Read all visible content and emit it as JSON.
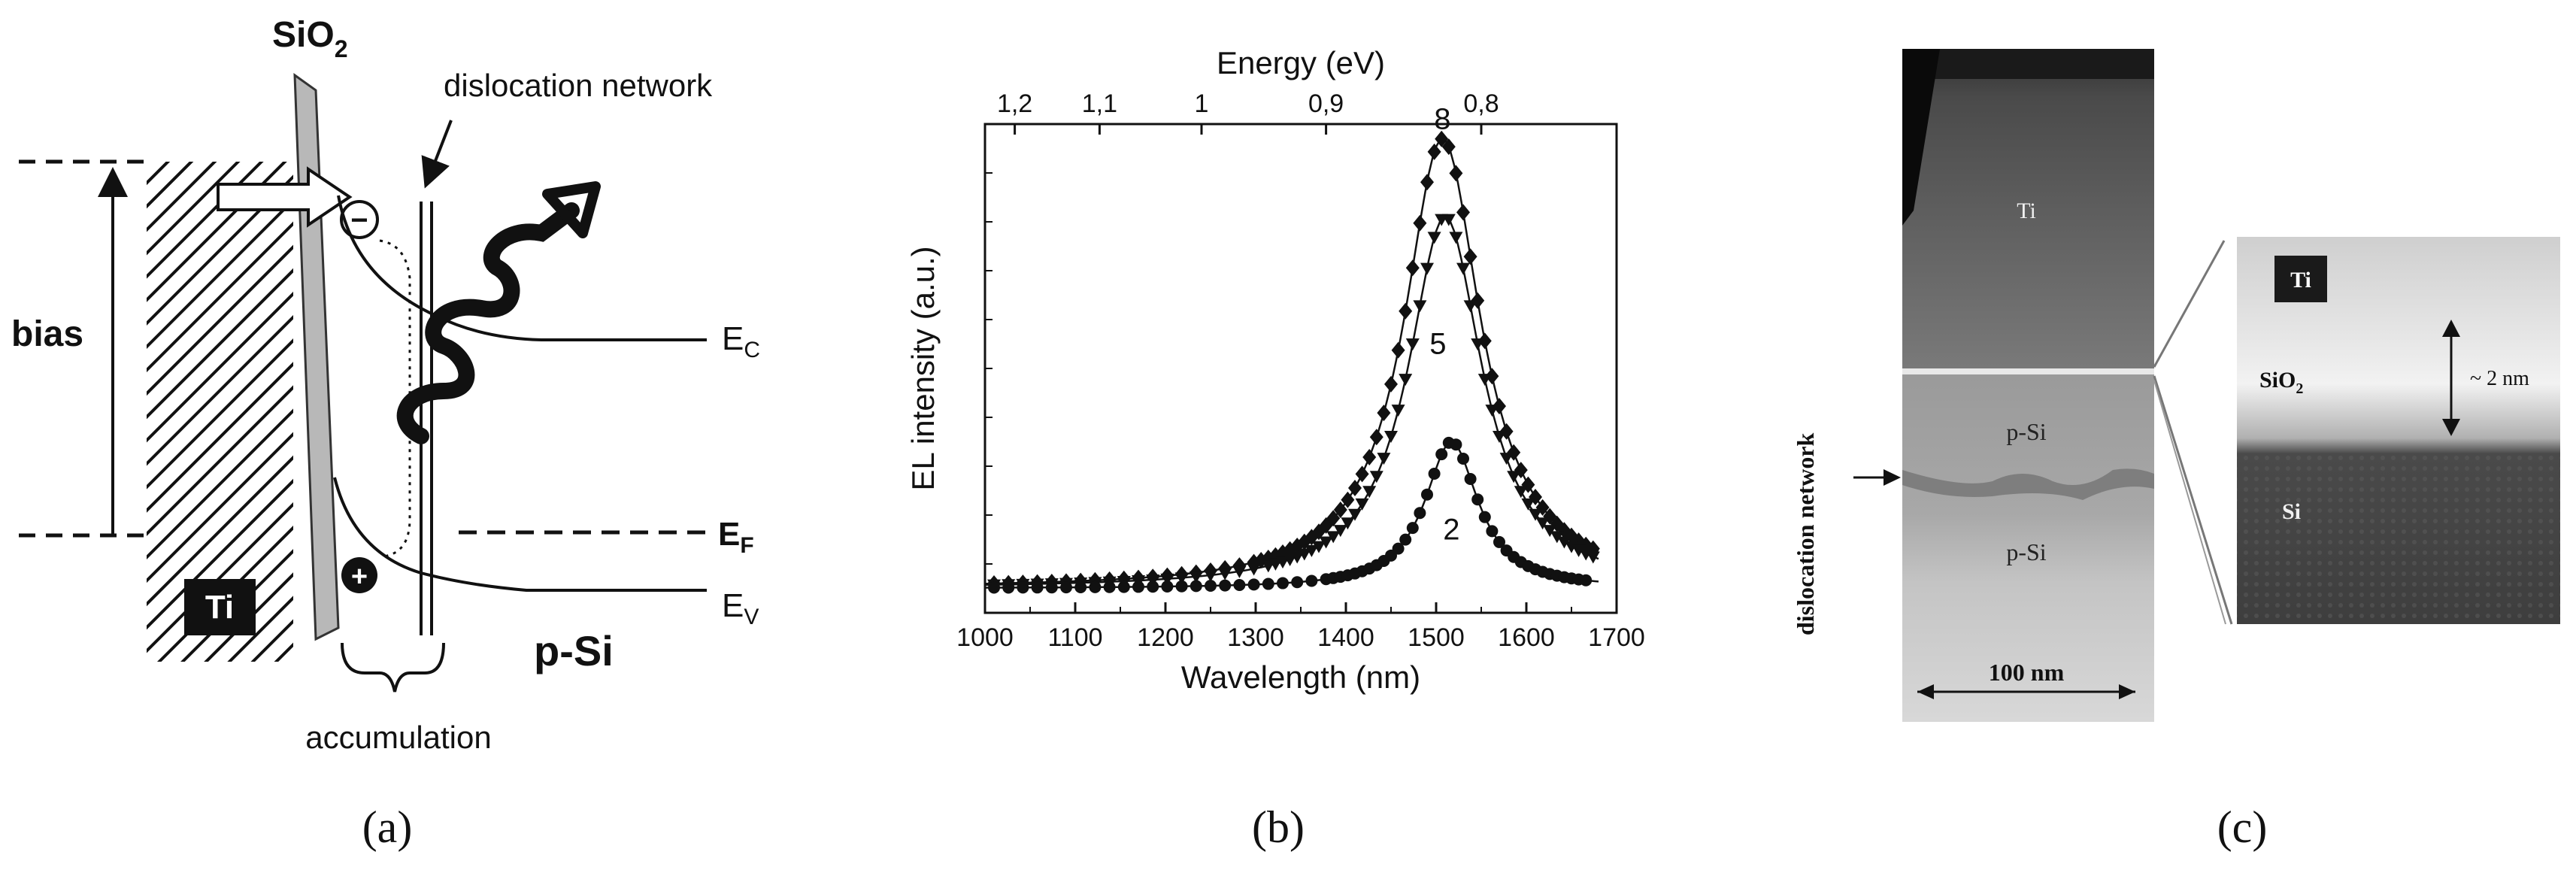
{
  "panel_a": {
    "caption": "(a)",
    "sio2_label": "SiO",
    "sio2_sub": "2",
    "dislocation_label": "dislocation network",
    "bias_label": "bias",
    "ec_label": "E",
    "ec_sub": "C",
    "ef_label": "E",
    "ef_sub": "F",
    "ev_label": "E",
    "ev_sub": "V",
    "ti_label": "Ti",
    "psi_label": "p-Si",
    "accumulation_label": "accumulation",
    "electron_symbol": "−",
    "hole_symbol": "+"
  },
  "panel_b": {
    "caption": "(b)",
    "chart_data": {
      "type": "line",
      "xlabel": "Wavelength (nm)",
      "ylabel": "EL intensity (a.u.)",
      "top_axis_label": "Energy (eV)",
      "xlim": [
        1000,
        1700
      ],
      "ylim": [
        0,
        1.0
      ],
      "xticks": [
        1000,
        1100,
        1200,
        1300,
        1400,
        1500,
        1600,
        1700
      ],
      "top_ticks": [
        {
          "label": "1,2",
          "wavelength": 1033
        },
        {
          "label": "1,1",
          "wavelength": 1127
        },
        {
          "label": "1",
          "wavelength": 1240
        },
        {
          "label": "0,9",
          "wavelength": 1378
        },
        {
          "label": "0,8",
          "wavelength": 1550
        }
      ],
      "series": [
        {
          "name": "8",
          "marker": "diamond",
          "peak_wl": 1507,
          "peak": 0.92,
          "width": 52,
          "baseline": 0.05,
          "label_at": [
            1507,
            0.99
          ]
        },
        {
          "name": "5",
          "marker": "triangle-down",
          "peak_wl": 1510,
          "peak": 0.76,
          "width": 50,
          "baseline": 0.05,
          "label_at": [
            1502,
            0.53
          ]
        },
        {
          "name": "2",
          "marker": "circle",
          "peak_wl": 1517,
          "peak": 0.3,
          "width": 36,
          "baseline": 0.05,
          "label_at": [
            1517,
            0.15
          ]
        }
      ]
    }
  },
  "panel_c": {
    "caption": "(c)",
    "ti_label": "Ti",
    "psi_top_label": "p-Si",
    "psi_bottom_label": "p-Si",
    "scale_label": "100 nm",
    "side_label": "dislocation network",
    "inset_ti_label": "Ti",
    "inset_sio2_label": "SiO",
    "inset_sio2_sub": "2",
    "inset_si_label": "Si",
    "inset_thickness_label": "~ 2 nm"
  }
}
